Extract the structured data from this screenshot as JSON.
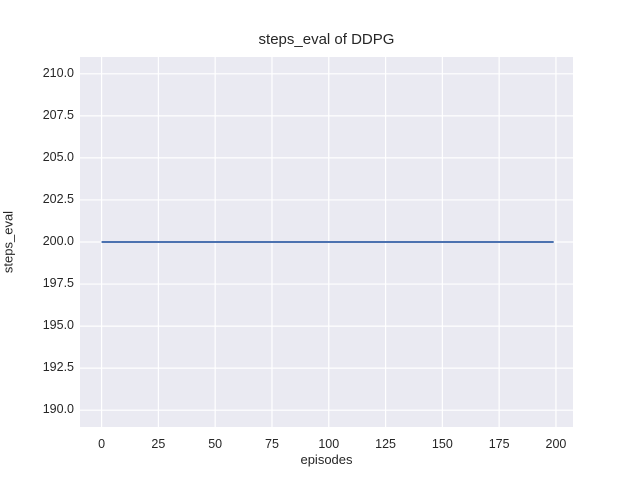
{
  "chart_data": {
    "type": "line",
    "title": "steps_eval of DDPG",
    "xlabel": "episodes",
    "ylabel": "steps_eval",
    "xlim": [
      -9.5,
      207.5
    ],
    "ylim": [
      189.0,
      211.0
    ],
    "x_ticks": [
      0,
      25,
      50,
      75,
      100,
      125,
      150,
      175,
      200
    ],
    "y_ticks": [
      190.0,
      192.5,
      195.0,
      197.5,
      200.0,
      202.5,
      205.0,
      207.5,
      210.0
    ],
    "y_tick_decimals": 1,
    "grid": true,
    "legend": "none",
    "colors": {
      "plot_background": "#EAEAF2",
      "figure_background": "#FFFFFF",
      "grid_line": "#FFFFFF",
      "text": "#262626",
      "series_line": "#4C72B0"
    },
    "series": [
      {
        "name": "steps_eval",
        "color": "#4C72B0",
        "constant_value": 200,
        "x": [
          0,
          199
        ],
        "y": [
          200,
          200
        ]
      }
    ]
  }
}
